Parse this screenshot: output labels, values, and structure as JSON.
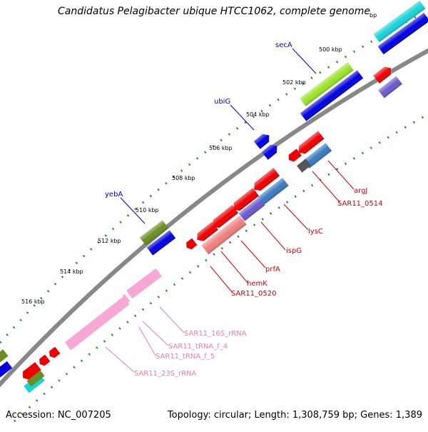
{
  "title": "Candidatus Pelagibacter ubique HTCC1062, complete genome",
  "footer": {
    "accession": "Accession: NC_007205",
    "summary": "Topology: circular; Length: 1,308,759 bp; Genes: 1,389"
  },
  "scale": {
    "unit_suffix": "bp",
    "ticks": [
      "500 kbp",
      "502 kbp",
      "504 kbp",
      "506 kbp",
      "508 kbp",
      "510 kbp",
      "512 kbp",
      "514 kbp",
      "516 kbp"
    ]
  },
  "colors": {
    "backbone": "#888888",
    "tick": "#2e8b2e",
    "forward_label": "#0000cc",
    "reverse_label": "#cc0000",
    "rna_label": "#e87ab8"
  },
  "labels": {
    "forward": [
      "secA",
      "ubiG",
      "yebA"
    ],
    "reverse": [
      "argJ",
      "SAR11_0514",
      "lysC",
      "ispG",
      "prfA",
      "hemK",
      "SAR11_0520"
    ],
    "rna": [
      "SAR11_16S_rRNA",
      "SAR11_tRNA_f_4",
      "SAR11_tRNA_f_5",
      "SAR11_23S_rRNA"
    ]
  }
}
